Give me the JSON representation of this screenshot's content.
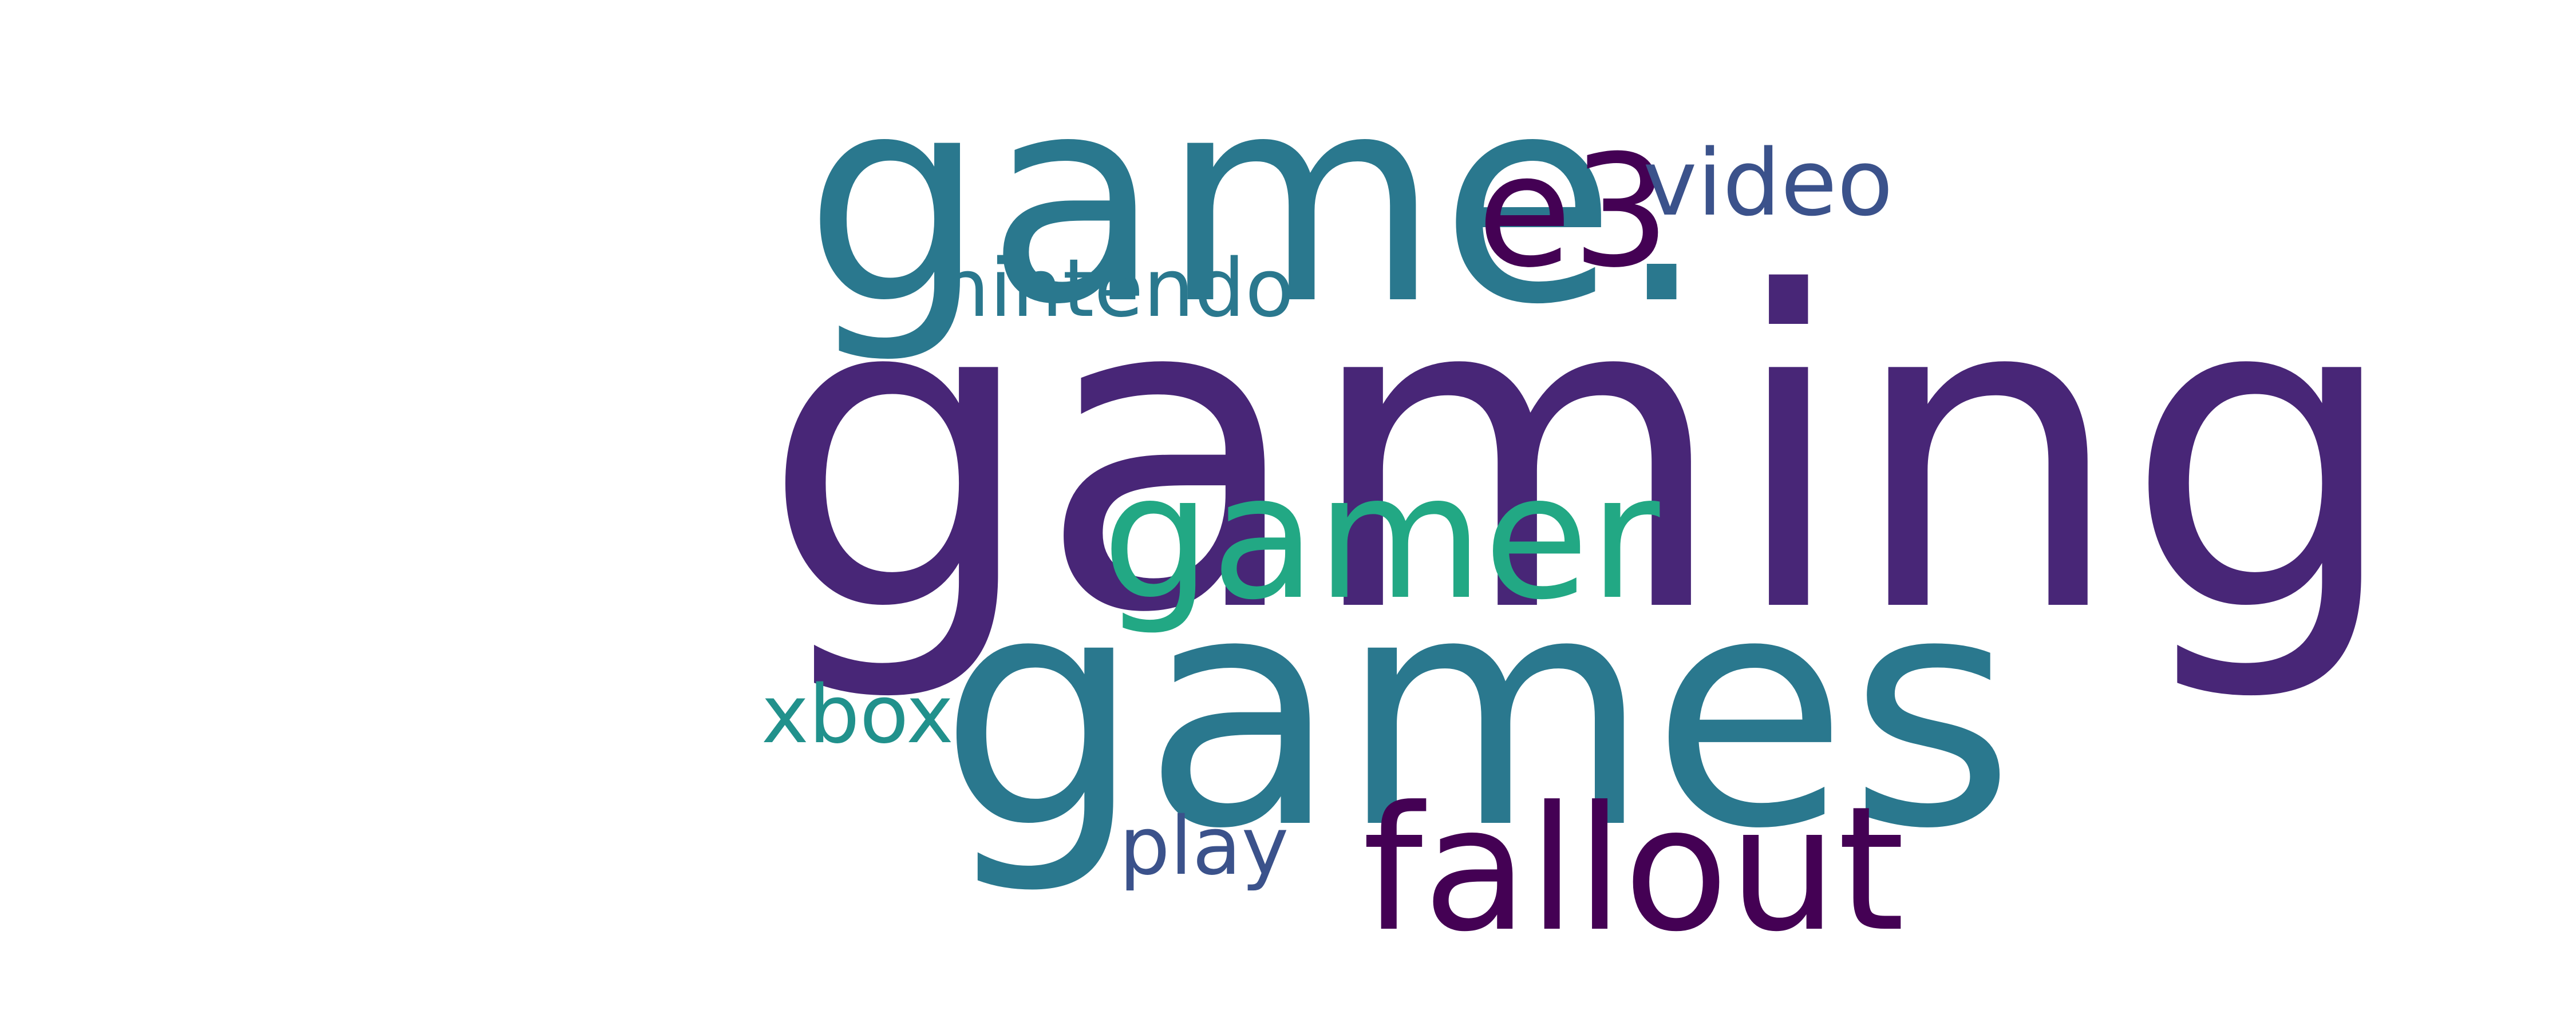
{
  "words": [
    {
      "key": "gaming",
      "text": "gaming",
      "color": "#482677"
    },
    {
      "key": "games",
      "text": "games",
      "color": "#2A788E"
    },
    {
      "key": "game",
      "text": "game.",
      "color": "#2A788E"
    },
    {
      "key": "gamer",
      "text": "gamer",
      "color": "#22A884"
    },
    {
      "key": "fallout",
      "text": "fallout",
      "color": "#440154"
    },
    {
      "key": "e3",
      "text": "e3",
      "color": "#440154"
    },
    {
      "key": "video",
      "text": "video",
      "color": "#3B528B"
    },
    {
      "key": "nintendo",
      "text": "nintendo",
      "color": "#2A788E"
    },
    {
      "key": "xbox",
      "text": "xbox",
      "color": "#21918C"
    },
    {
      "key": "play",
      "text": "play",
      "color": "#3B528B"
    }
  ]
}
